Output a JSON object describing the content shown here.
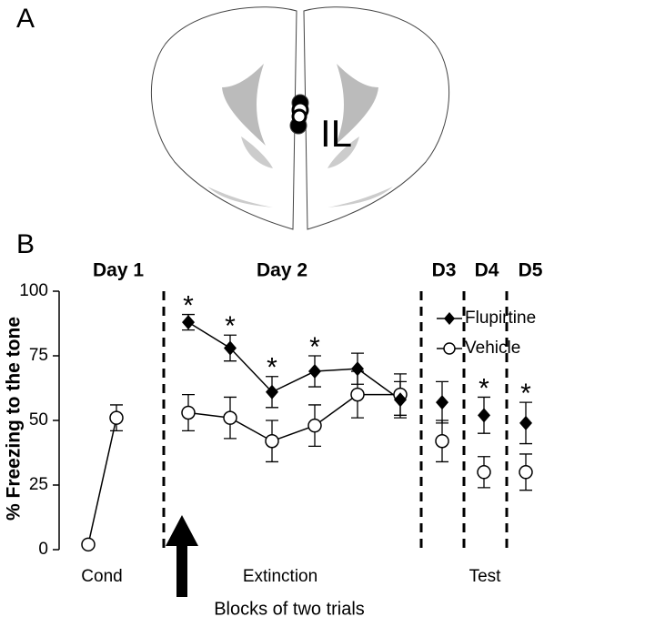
{
  "panel_labels": [
    "A",
    "B"
  ],
  "region_label": "IL",
  "chart_data": {
    "type": "line",
    "ylabel": "% Freezing to the tone",
    "xlabel": "Blocks of two trials",
    "categories": [
      null,
      null,
      null,
      null,
      null,
      null,
      null,
      null,
      null,
      null,
      null
    ],
    "group_labels": [
      "Cond",
      "Extinction",
      "Test"
    ],
    "day_labels": [
      "Day 1",
      "Day 2",
      "D3",
      "D4",
      "D5"
    ],
    "significance_marks": [
      "*",
      "*",
      "*",
      "*",
      "*",
      "*"
    ],
    "ylim": [
      0,
      100
    ],
    "yticks": [
      0,
      25,
      50,
      75,
      100
    ],
    "series": [
      {
        "name": "Flupirtine",
        "color": "#000000",
        "marker": "diamond",
        "values": [
          null,
          null,
          88,
          78,
          61,
          69,
          70,
          58,
          57,
          52,
          49
        ],
        "errors": [
          null,
          null,
          3,
          5,
          6,
          6,
          6,
          7,
          8,
          7,
          8
        ]
      },
      {
        "name": "Vehicle",
        "color": "#000000",
        "marker": "circle",
        "values": [
          2,
          51,
          53,
          51,
          42,
          48,
          60,
          60,
          42,
          30,
          30
        ],
        "errors": [
          0,
          5,
          7,
          8,
          8,
          8,
          9,
          8,
          8,
          6,
          7
        ]
      }
    ]
  }
}
